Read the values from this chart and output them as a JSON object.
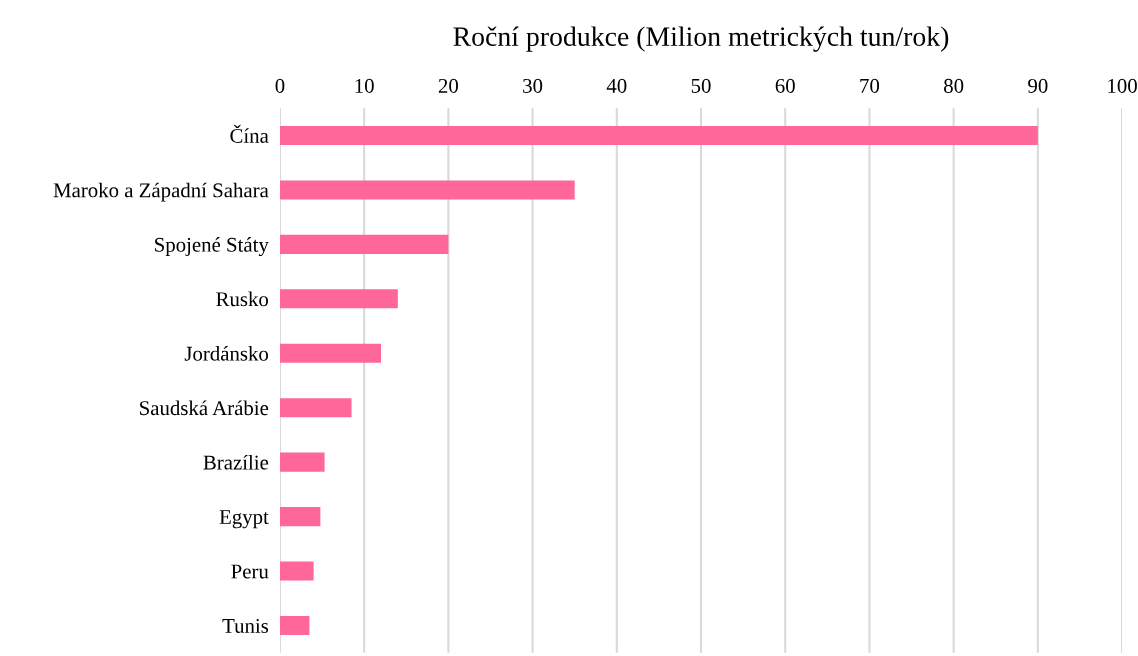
{
  "chart_data": {
    "type": "bar",
    "orientation": "horizontal",
    "title": "Roční produkce (Milion metrických tun/rok)",
    "categories": [
      "Čína",
      "Maroko a Západní Sahara",
      "Spojené Státy",
      "Rusko",
      "Jordánsko",
      "Saudská Arábie",
      "Brazílie",
      "Egypt",
      "Peru",
      "Tunis"
    ],
    "values": [
      90,
      35,
      20,
      14,
      12,
      8.5,
      5.3,
      4.8,
      4.0,
      3.5
    ],
    "color": "#ff6699",
    "xlim": [
      0,
      100
    ],
    "xticks": [
      0,
      10,
      20,
      30,
      40,
      50,
      60,
      70,
      80,
      90,
      100
    ],
    "grid": "x"
  }
}
